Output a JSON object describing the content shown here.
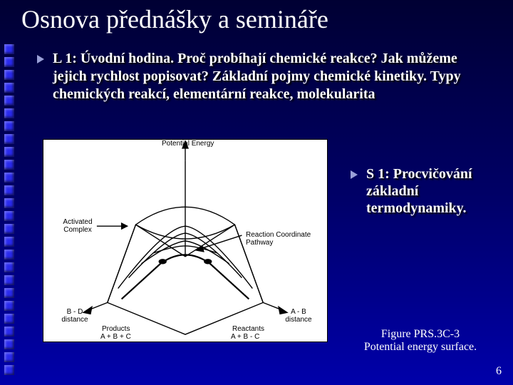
{
  "title": "Osnova přednášky a semináře",
  "bullet1": "L 1: Úvodní hodina. Proč probíhají chemické reakce? Jak můžeme jejich rychlost popisovat? Základní pojmy chemické kinetiky. Typy chemických reakcí, elementární reakce, molekularita",
  "bullet2": "S 1: Procvičování základní termodynamiky.",
  "figure": {
    "caption_line1": "Figure PRS.3C-3",
    "caption_line2": "Potential energy surface.",
    "labels": {
      "top": "Potential Energy",
      "activated": "Activated Complex",
      "pathway": "Reaction Coordinate Pathway",
      "left_axis": "B - D distance",
      "right_axis": "A - B distance",
      "products_top": "Products",
      "products_bot": "A + B + C",
      "reactants_top": "Reactants",
      "reactants_bot": "A + B - C"
    }
  },
  "page_number": "6",
  "deco": {
    "count": 26,
    "color": "#2a2aee"
  },
  "colors": {
    "bullet_arrow": "#9aa0d8",
    "text": "#ffffff"
  }
}
